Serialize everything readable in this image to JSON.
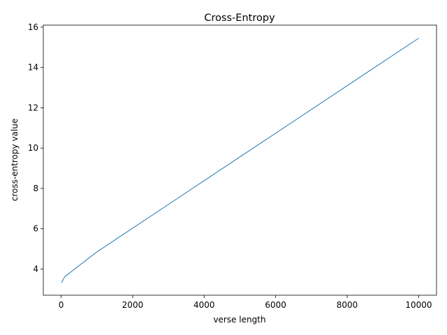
{
  "chart_data": {
    "type": "line",
    "title": "Cross-Entropy",
    "xlabel": "verse length",
    "ylabel": "cross-entropy value",
    "xlim": [
      -500,
      10500
    ],
    "ylim": [
      2.7,
      16.1
    ],
    "x_ticks": [
      0,
      2000,
      4000,
      6000,
      8000,
      10000
    ],
    "x_tick_labels": [
      "0",
      "2000",
      "4000",
      "6000",
      "8000",
      "10000"
    ],
    "y_ticks": [
      4,
      6,
      8,
      10,
      12,
      14,
      16
    ],
    "y_tick_labels": [
      "4",
      "6",
      "8",
      "10",
      "12",
      "14",
      "16"
    ],
    "grid": false,
    "series": [
      {
        "color": "#1f77b4",
        "x": [
          10,
          100,
          1000,
          10000
        ],
        "y": [
          3.32,
          3.62,
          4.85,
          15.45
        ]
      }
    ]
  }
}
